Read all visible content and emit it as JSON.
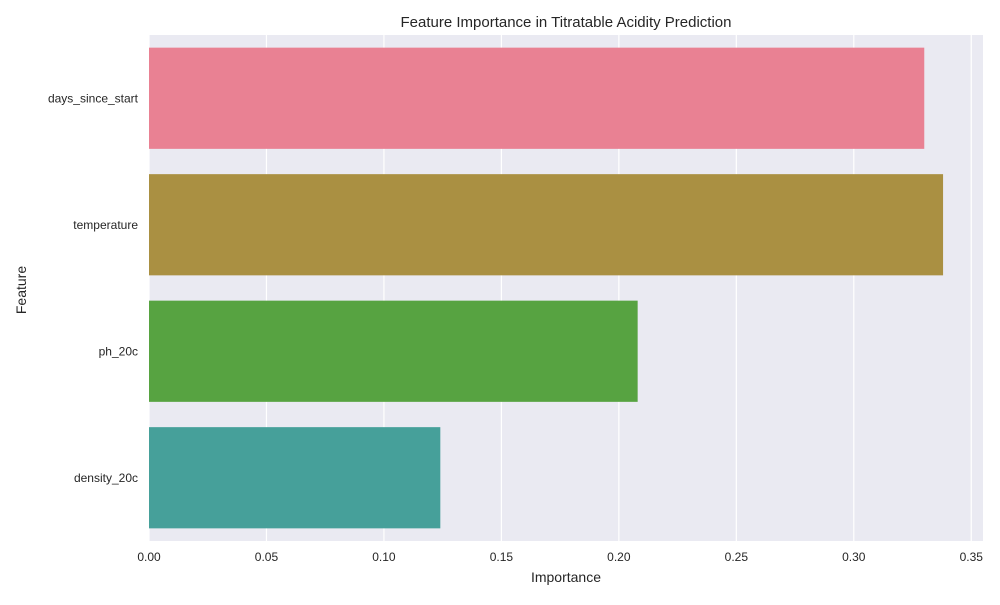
{
  "chart_data": {
    "type": "bar",
    "orientation": "horizontal",
    "title": "Feature Importance in Titratable Acidity Prediction",
    "xlabel": "Importance",
    "ylabel": "Feature",
    "categories": [
      "days_since_start",
      "temperature",
      "ph_20c",
      "density_20c"
    ],
    "values": [
      0.33,
      0.338,
      0.208,
      0.124
    ],
    "colors": [
      "#e98193",
      "#aa9042",
      "#57a341",
      "#46a09a"
    ],
    "xlim": [
      0,
      0.355
    ],
    "xticks": [
      0.0,
      0.05,
      0.1,
      0.15,
      0.2,
      0.25,
      0.3,
      0.35
    ],
    "xtick_labels": [
      "0.00",
      "0.05",
      "0.10",
      "0.15",
      "0.20",
      "0.25",
      "0.30",
      "0.35"
    ],
    "grid": true,
    "background": "#eaeaf2",
    "grid_color": "#ffffff"
  }
}
